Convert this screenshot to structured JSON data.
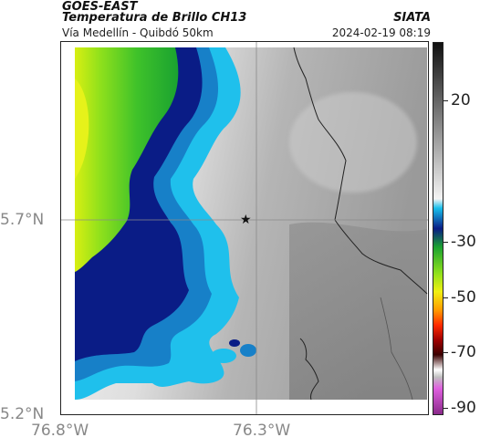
{
  "header": {
    "satellite": "GOES-EAST",
    "product": "Temperatura de Brillo CH13",
    "region": "Vía Medellín - Quibdó 50km",
    "source": "SIATA",
    "datetime": "2024-02-19 08:19"
  },
  "axes": {
    "lat_ticks": [
      "5.7°N",
      "5.2°N"
    ],
    "lon_ticks": [
      "76.8°W",
      "76.3°W"
    ]
  },
  "colorbar": {
    "ticks": [
      "20",
      "-30",
      "-50",
      "-70",
      "-90"
    ]
  },
  "marker": {
    "icon": "star-marker-icon"
  },
  "colors": {
    "frame": "#222222",
    "gridline": "#9a9a9a",
    "warm_gray": "#8a8a8a",
    "cold_cyan": "#18b8e8",
    "cold_blue": "#0a1e8a",
    "cold_green": "#2fbf2a",
    "cold_yellow": "#e8f012"
  }
}
